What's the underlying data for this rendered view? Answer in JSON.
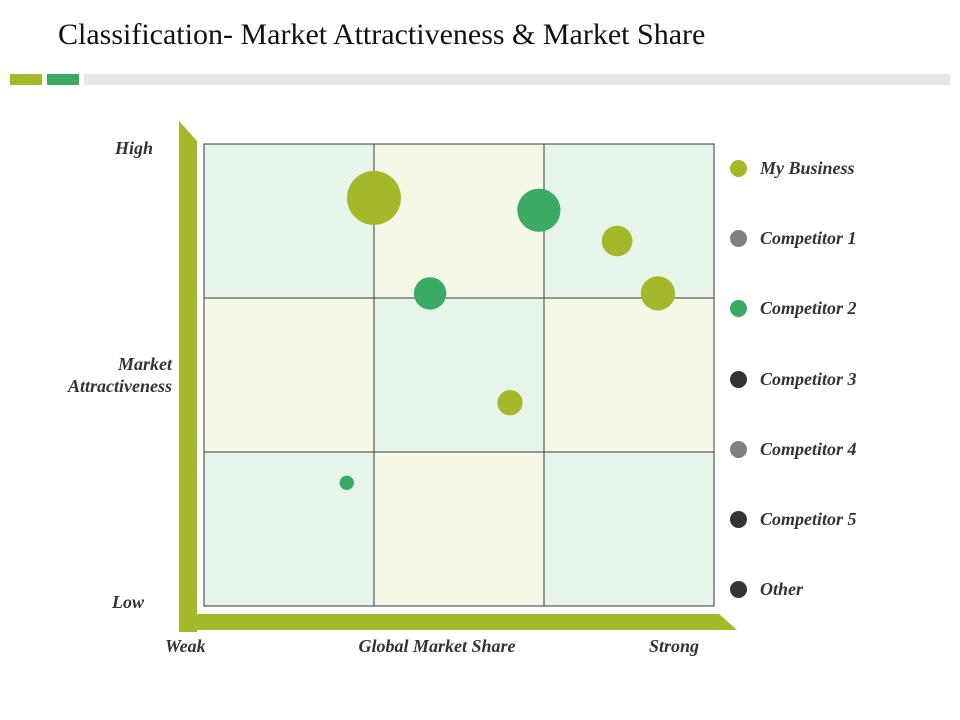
{
  "header": {
    "title": "Classification- Market Attractiveness & Market Share"
  },
  "colors": {
    "accent_lime": "#a5b82a",
    "accent_green": "#3aaa64",
    "cell_green": "#e6f4ea",
    "cell_cream": "#f5f8e6",
    "legend_gray": "#808080",
    "legend_dark": "#333333"
  },
  "chart_data": {
    "type": "scatter",
    "y_axis": {
      "label": "Market Attractiveness",
      "low": "Low",
      "high": "High"
    },
    "x_axis": {
      "label": "Global Market Share",
      "low": "Weak",
      "high": "Strong"
    },
    "xlim": [
      0,
      3
    ],
    "ylim": [
      0,
      3
    ],
    "grid": {
      "rows": 3,
      "cols": 3,
      "pattern": [
        [
          "green",
          "cream",
          "green"
        ],
        [
          "cream",
          "green",
          "cream"
        ],
        [
          "green",
          "cream",
          "green"
        ]
      ]
    },
    "legend": [
      {
        "name": "My Business",
        "color": "#a5b82a"
      },
      {
        "name": "Competitor 1",
        "color": "#808080"
      },
      {
        "name": "Competitor 2",
        "color": "#3aaa64"
      },
      {
        "name": "Competitor 3",
        "color": "#333333"
      },
      {
        "name": "Competitor 4",
        "color": "#808080"
      },
      {
        "name": "Competitor 5",
        "color": "#333333"
      },
      {
        "name": "Other",
        "color": "#333333"
      }
    ],
    "points": [
      {
        "x": 1.0,
        "y": 2.65,
        "size": 3,
        "color": "#a5b82a"
      },
      {
        "x": 1.97,
        "y": 2.57,
        "size": 2.4,
        "color": "#3aaa64"
      },
      {
        "x": 2.43,
        "y": 2.37,
        "size": 1.7,
        "color": "#a5b82a"
      },
      {
        "x": 2.67,
        "y": 2.03,
        "size": 1.9,
        "color": "#a5b82a"
      },
      {
        "x": 1.33,
        "y": 2.03,
        "size": 1.8,
        "color": "#3aaa64"
      },
      {
        "x": 1.8,
        "y": 1.32,
        "size": 1.4,
        "color": "#a5b82a"
      },
      {
        "x": 0.84,
        "y": 0.8,
        "size": 0.8,
        "color": "#3aaa64"
      }
    ]
  }
}
